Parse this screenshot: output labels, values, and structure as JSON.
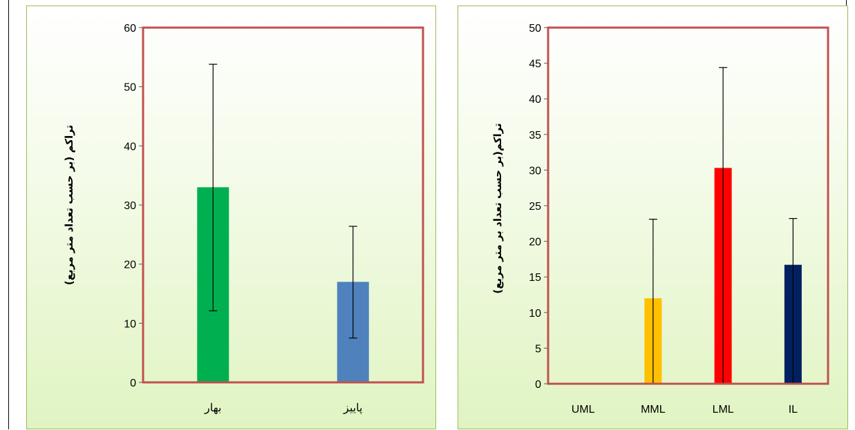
{
  "chart_data": [
    {
      "type": "bar",
      "ylabel": "تراکم (بر حسب  تعداد متر مربع)",
      "categories": [
        "بهار",
        "پاییز"
      ],
      "values": [
        33,
        17
      ],
      "errors": [
        [
          12.1,
          53.8
        ],
        [
          7.5,
          26.4
        ]
      ],
      "colors": [
        "#00b050",
        "#4f81bd"
      ],
      "ylim": [
        0,
        60
      ],
      "yticks": [
        0,
        10,
        20,
        30,
        40,
        50,
        60
      ],
      "plot_border_color": "#c0504d",
      "grid": false,
      "legend": "none"
    },
    {
      "type": "bar",
      "ylabel": "تراکم(بر حسب تعداد بر متر مربع)",
      "categories": [
        "UML",
        "MML",
        "LML",
        "IL"
      ],
      "values": [
        0,
        12,
        30.3,
        16.7
      ],
      "errors": [
        [
          0,
          0
        ],
        [
          0,
          23.1
        ],
        [
          0,
          44.4
        ],
        [
          0,
          23.2
        ]
      ],
      "colors": [
        "#ffc000",
        "#ffc000",
        "#ff0000",
        "#002060"
      ],
      "ylim": [
        0,
        50
      ],
      "yticks": [
        0,
        5,
        10,
        15,
        20,
        25,
        30,
        35,
        40,
        45,
        50
      ],
      "plot_border_color": "#c0504d",
      "grid": false,
      "legend": "none"
    }
  ]
}
